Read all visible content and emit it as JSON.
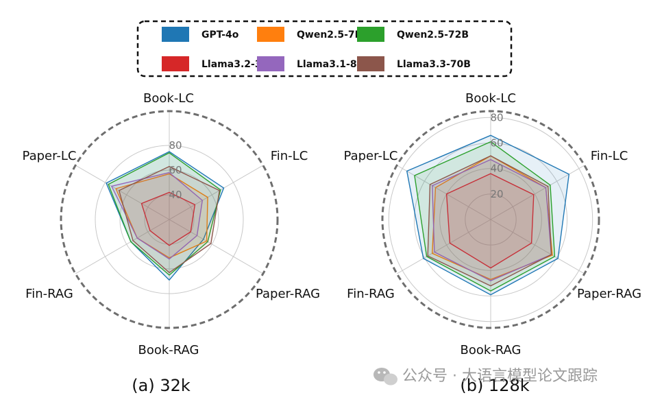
{
  "legend": {
    "items": [
      {
        "name": "GPT-4o",
        "color": "#1f77b4"
      },
      {
        "name": "Qwen2.5-7B",
        "color": "#ff7f0e"
      },
      {
        "name": "Qwen2.5-72B",
        "color": "#2ca02c"
      },
      {
        "name": "Llama3.2-3B",
        "color": "#d62728"
      },
      {
        "name": "Llama3.1-8B",
        "color": "#9467bd"
      },
      {
        "name": "Llama3.3-70B",
        "color": "#8c564b"
      }
    ]
  },
  "watermark": {
    "text": "公众号 · 大语言模型论文跟踪"
  },
  "chart_data": [
    {
      "type": "radar",
      "caption": "(a) 32k",
      "axes": [
        "Book-LC",
        "Fin-LC",
        "Paper-RAG",
        "Book-RAG",
        "Fin-RAG",
        "Paper-LC"
      ],
      "rlim": [
        20,
        90
      ],
      "ticks": [
        40,
        60,
        80
      ],
      "series": [
        {
          "name": "GPT-4o",
          "values": [
            75,
            71,
            52,
            69,
            56,
            79
          ]
        },
        {
          "name": "Qwen2.5-7B",
          "values": [
            57,
            56,
            55,
            51,
            50,
            70
          ]
        },
        {
          "name": "Qwen2.5-72B",
          "values": [
            74,
            68,
            56,
            65,
            56,
            77
          ]
        },
        {
          "name": "Llama3.2-3B",
          "values": [
            42,
            44,
            40,
            41,
            38,
            46
          ]
        },
        {
          "name": "Llama3.1-8B",
          "values": [
            58,
            51,
            46,
            52,
            50,
            74
          ]
        },
        {
          "name": "Llama3.3-70B",
          "values": [
            63,
            67,
            59,
            63,
            54,
            67
          ]
        }
      ]
    },
    {
      "type": "radar",
      "caption": "(b) 128k",
      "axes": [
        "Book-LC",
        "Fin-LC",
        "Paper-RAG",
        "Book-RAG",
        "Fin-RAG",
        "Paper-LC"
      ],
      "rlim": [
        0,
        85
      ],
      "ticks": [
        20,
        40,
        60,
        80
      ],
      "series": [
        {
          "name": "GPT-4o",
          "values": [
            66,
            71,
            61,
            59,
            61,
            76
          ]
        },
        {
          "name": "Qwen2.5-7B",
          "values": [
            50,
            50,
            56,
            47,
            53,
            50
          ]
        },
        {
          "name": "Qwen2.5-72B",
          "values": [
            61,
            54,
            58,
            56,
            58,
            69
          ]
        },
        {
          "name": "Llama3.2-3B",
          "values": [
            36,
            39,
            37,
            38,
            37,
            40
          ]
        },
        {
          "name": "Llama3.1-8B",
          "values": [
            47,
            50,
            55,
            48,
            51,
            53
          ]
        },
        {
          "name": "Llama3.3-70B",
          "values": [
            50,
            52,
            55,
            52,
            57,
            55
          ]
        }
      ]
    }
  ]
}
